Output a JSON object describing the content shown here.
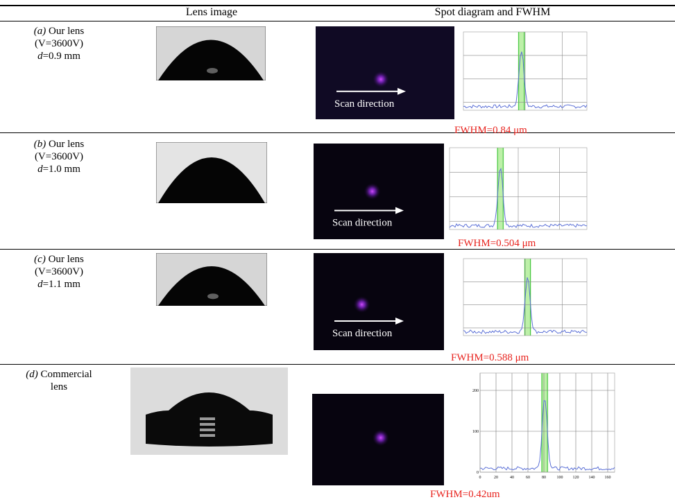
{
  "header": {
    "lens_column": "Lens image",
    "spot_column": "Spot diagram and FWHM"
  },
  "rows": [
    {
      "tag": "(a)",
      "label": "Our lens",
      "voltage": "(V=3600V)",
      "d_var": "d",
      "d_value": "=0.9 mm",
      "scan": "Scan direction",
      "fwhm": "FWHM=0.84 μm"
    },
    {
      "tag": "(b)",
      "label": "Our lens",
      "voltage": "(V=3600V)",
      "d_var": "d",
      "d_value": "=1.0 mm",
      "scan": "Scan direction",
      "fwhm": "FWHM=0.504 μm"
    },
    {
      "tag": "(c)",
      "label": "Our lens",
      "voltage": "(V=3600V)",
      "d_var": "d",
      "d_value": "=1.1 mm",
      "scan": "Scan direction",
      "fwhm": "FWHM=0.588 μm"
    },
    {
      "tag": "(d)",
      "label": "Commercial",
      "label2": "lens",
      "fwhm": "FWHM=0.42um",
      "plot": {
        "xticks": [
          0,
          20,
          40,
          60,
          80,
          100,
          120,
          140,
          160
        ],
        "yticks": [
          0,
          100,
          200
        ]
      }
    }
  ]
}
